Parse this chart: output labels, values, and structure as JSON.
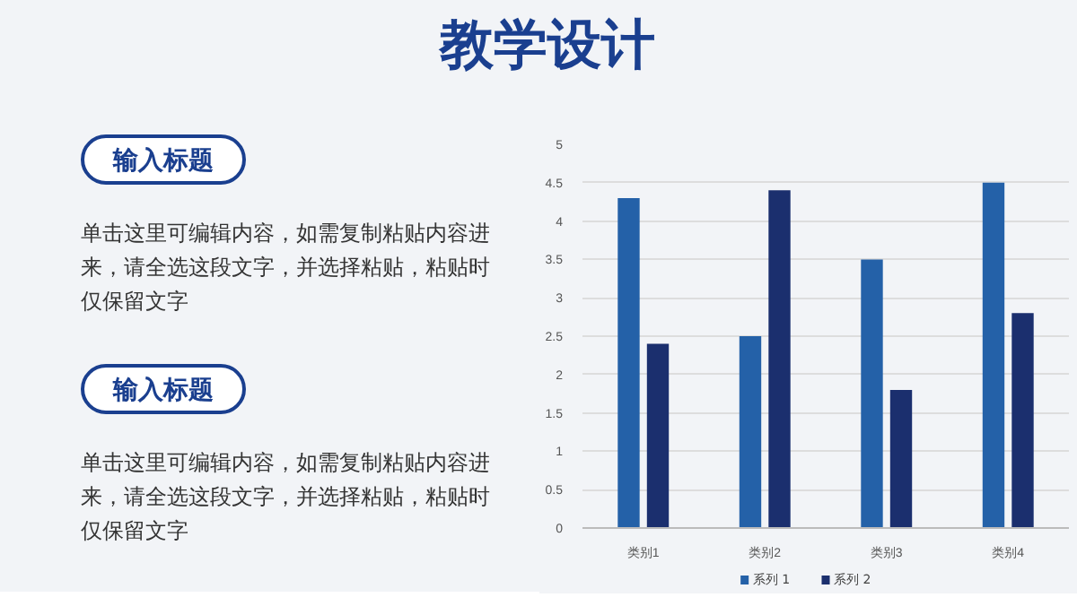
{
  "chart_data": {
    "type": "bar",
    "title": "教学设计",
    "categories": [
      "类别1",
      "类别2",
      "类别3",
      "类别4"
    ],
    "series": [
      {
        "name": "系列 1",
        "color": "#2461a8",
        "values": [
          4.3,
          2.5,
          3.5,
          4.5
        ]
      },
      {
        "name": "系列 2",
        "color": "#1b2f6e",
        "values": [
          2.4,
          4.4,
          1.8,
          2.8
        ]
      }
    ],
    "ylim": [
      0,
      5
    ],
    "yticks": [
      0,
      0.5,
      1,
      1.5,
      2,
      2.5,
      3,
      3.5,
      4,
      4.5,
      5
    ],
    "grid": "y",
    "legend": "bottom",
    "annotations": [
      "输入标题",
      "单击这里可编辑内容，如需复制粘贴内容进来，请全选这段文字，并选择粘贴，粘贴时仅保留文字",
      "输入标题",
      "单击这里可编辑内容，如需复制粘贴内容进来，请全选这段文字，并选择粘贴，粘贴时仅保留文字"
    ]
  }
}
